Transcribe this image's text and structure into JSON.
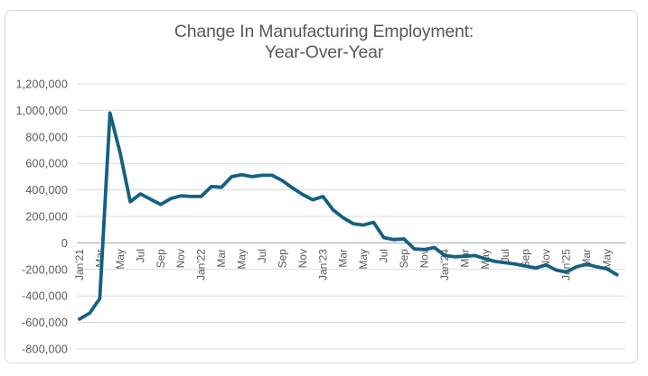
{
  "title": {
    "line1": "Change In Manufacturing Employment:",
    "line2": "Year-Over-Year"
  },
  "colors": {
    "line": "#156082",
    "grid": "#d9d9d9",
    "zero_axis": "#b3b3b3",
    "text": "#595959",
    "frame_border": "#d6d6d6",
    "background": "#ffffff"
  },
  "chart_data": {
    "type": "line",
    "title": "Change In Manufacturing Employment: Year-Over-Year",
    "legend": "none",
    "grid": "horizontal",
    "ylim": [
      -800000,
      1200000
    ],
    "y_ticks": [
      {
        "value": 1200000,
        "label": "1,200,000"
      },
      {
        "value": 1000000,
        "label": "1,000,000"
      },
      {
        "value": 800000,
        "label": "800,000"
      },
      {
        "value": 600000,
        "label": "600,000"
      },
      {
        "value": 400000,
        "label": "400,000"
      },
      {
        "value": 200000,
        "label": "200,000"
      },
      {
        "value": 0,
        "label": "0"
      },
      {
        "value": -200000,
        "label": "-200,000"
      },
      {
        "value": -400000,
        "label": "-400,000"
      },
      {
        "value": -600000,
        "label": "-600,000"
      },
      {
        "value": -800000,
        "label": "-800,000"
      }
    ],
    "x_tick_every": 2,
    "x_tick_labels": [
      "Jan'21",
      "Mar",
      "May",
      "Jul",
      "Sep",
      "Nov",
      "Jan'22",
      "Mar",
      "May",
      "Jul",
      "Sep",
      "Nov",
      "Jan'23",
      "Mar",
      "May",
      "Jul",
      "Sep",
      "Nov",
      "Jan'24",
      "Mar",
      "May",
      "Jul",
      "Sep",
      "Nov",
      "Jan'25",
      "Mar",
      "May"
    ],
    "x": [
      "Jan'21",
      "Feb'21",
      "Mar'21",
      "Apr'21",
      "May'21",
      "Jun'21",
      "Jul'21",
      "Aug'21",
      "Sep'21",
      "Oct'21",
      "Nov'21",
      "Dec'21",
      "Jan'22",
      "Feb'22",
      "Mar'22",
      "Apr'22",
      "May'22",
      "Jun'22",
      "Jul'22",
      "Aug'22",
      "Sep'22",
      "Oct'22",
      "Nov'22",
      "Dec'22",
      "Jan'23",
      "Feb'23",
      "Mar'23",
      "Apr'23",
      "May'23",
      "Jun'23",
      "Jul'23",
      "Aug'23",
      "Sep'23",
      "Oct'23",
      "Nov'23",
      "Dec'23",
      "Jan'24",
      "Feb'24",
      "Mar'24",
      "Apr'24",
      "May'24",
      "Jun'24",
      "Jul'24",
      "Aug'24",
      "Sep'24",
      "Oct'24",
      "Nov'24",
      "Dec'24",
      "Jan'25",
      "Feb'25",
      "Mar'25",
      "Apr'25",
      "May'25",
      "Jun'25"
    ],
    "values": [
      -575000,
      -530000,
      -420000,
      980000,
      680000,
      310000,
      370000,
      330000,
      290000,
      335000,
      355000,
      350000,
      350000,
      425000,
      420000,
      500000,
      515000,
      500000,
      510000,
      510000,
      470000,
      415000,
      365000,
      325000,
      350000,
      250000,
      190000,
      145000,
      135000,
      155000,
      40000,
      25000,
      30000,
      -45000,
      -50000,
      -35000,
      -95000,
      -105000,
      -100000,
      -95000,
      -120000,
      -140000,
      -150000,
      -160000,
      -175000,
      -190000,
      -165000,
      -205000,
      -220000,
      -180000,
      -160000,
      -180000,
      -195000,
      -240000
    ]
  }
}
